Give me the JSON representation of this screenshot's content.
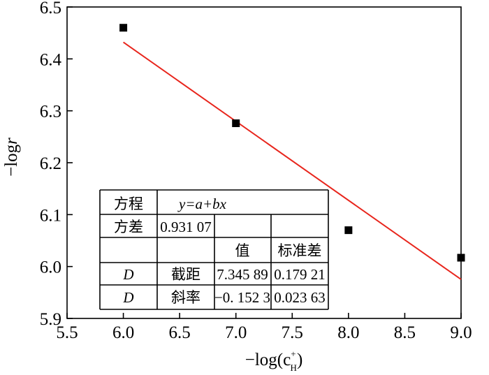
{
  "chart_data": {
    "type": "scatter",
    "title": "",
    "xlabel": "−log(c",
    "xlabel_sub": "H",
    "xlabel_sup": "+",
    "xlabel_close": ")",
    "ylabel": "−log",
    "ylabel_var": "r",
    "xlim": [
      5.5,
      9.0
    ],
    "ylim": [
      5.9,
      6.5
    ],
    "xticks": [
      "5.5",
      "6.0",
      "6.5",
      "7.0",
      "7.5",
      "8.0",
      "8.5",
      "9.0"
    ],
    "yticks": [
      "5.9",
      "6.0",
      "6.1",
      "6.2",
      "6.3",
      "6.4",
      "6.5"
    ],
    "points": [
      {
        "x": 6.0,
        "y": 6.46
      },
      {
        "x": 7.0,
        "y": 6.276
      },
      {
        "x": 8.0,
        "y": 6.07
      },
      {
        "x": 9.0,
        "y": 6.017
      }
    ],
    "fit": {
      "intercept": 7.34589,
      "slope": -0.1523,
      "x_range": [
        6.0,
        9.0
      ],
      "color": "#e8251c"
    },
    "marker_color": "#000000"
  },
  "table": {
    "rows": [
      [
        "方程",
        "y=a+bx"
      ],
      [
        "方差",
        "0.931 07",
        "",
        ""
      ],
      [
        "",
        "",
        "值",
        "标准差"
      ],
      [
        "D",
        "截距",
        "7.345 89",
        "0.179 21"
      ],
      [
        "D",
        "斜率",
        "−0. 152 3",
        "0.023 63"
      ]
    ]
  }
}
